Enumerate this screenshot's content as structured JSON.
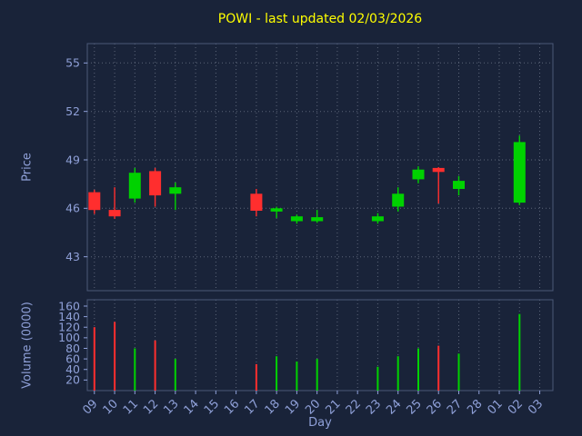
{
  "chart_data": {
    "type": "candlestick",
    "title": "POWI - last updated 02/03/2026",
    "xlabel": "Day",
    "price_axis": {
      "label": "Price",
      "ticks": [
        43,
        46,
        49,
        52,
        55
      ],
      "range": [
        40.9,
        56.2
      ]
    },
    "volume_axis": {
      "label": "Volume (0000)",
      "ticks": [
        20,
        40,
        60,
        80,
        100,
        120,
        140,
        160
      ],
      "range": [
        0,
        172
      ]
    },
    "days": [
      "09",
      "10",
      "11",
      "12",
      "13",
      "14",
      "15",
      "16",
      "17",
      "18",
      "19",
      "20",
      "21",
      "22",
      "23",
      "24",
      "25",
      "26",
      "27",
      "28",
      "01",
      "02",
      "03"
    ],
    "candles": [
      {
        "day": "09",
        "open": 47.0,
        "high": 47.15,
        "low": 45.65,
        "close": 45.9,
        "volume": 120
      },
      {
        "day": "10",
        "open": 45.9,
        "high": 47.3,
        "low": 45.35,
        "close": 45.5,
        "volume": 130
      },
      {
        "day": "11",
        "open": 46.6,
        "high": 48.5,
        "low": 46.35,
        "close": 48.2,
        "volume": 80
      },
      {
        "day": "12",
        "open": 48.3,
        "high": 48.5,
        "low": 46.1,
        "close": 46.8,
        "volume": 95
      },
      {
        "day": "13",
        "open": 46.9,
        "high": 47.6,
        "low": 45.9,
        "close": 47.3,
        "volume": 60
      },
      {
        "day": "17",
        "open": 46.9,
        "high": 47.2,
        "low": 45.5,
        "close": 45.85,
        "volume": 50
      },
      {
        "day": "18",
        "open": 45.8,
        "high": 46.1,
        "low": 45.4,
        "close": 46.0,
        "volume": 65
      },
      {
        "day": "19",
        "open": 45.2,
        "high": 45.6,
        "low": 45.05,
        "close": 45.5,
        "volume": 55
      },
      {
        "day": "20",
        "open": 45.2,
        "high": 45.9,
        "low": 45.1,
        "close": 45.45,
        "volume": 60
      },
      {
        "day": "23",
        "open": 45.2,
        "high": 45.7,
        "low": 45.05,
        "close": 45.5,
        "volume": 45
      },
      {
        "day": "24",
        "open": 46.1,
        "high": 47.3,
        "low": 45.8,
        "close": 46.9,
        "volume": 65
      },
      {
        "day": "25",
        "open": 47.8,
        "high": 48.6,
        "low": 47.55,
        "close": 48.4,
        "volume": 80
      },
      {
        "day": "26",
        "open": 48.5,
        "high": 48.55,
        "low": 46.3,
        "close": 48.25,
        "volume": 85
      },
      {
        "day": "27",
        "open": 47.2,
        "high": 48.0,
        "low": 46.8,
        "close": 47.7,
        "volume": 70
      },
      {
        "day": "02",
        "open": 46.35,
        "high": 50.5,
        "low": 46.2,
        "close": 50.1,
        "volume": 145
      }
    ],
    "colors": {
      "up": "#00d200",
      "down": "#ff2e2e",
      "background": "#192339",
      "text": "#8fa0d8",
      "title": "#ffff00",
      "grid": "#c8cede",
      "frame": "#4a5878"
    }
  }
}
